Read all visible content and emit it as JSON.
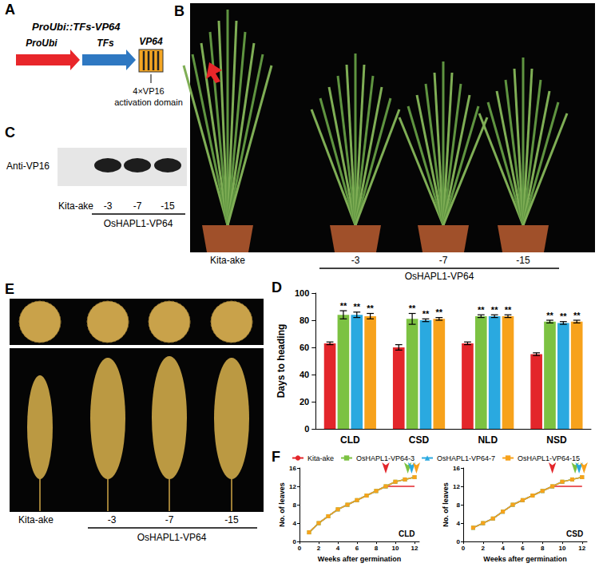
{
  "panels": {
    "A": {
      "label": "A",
      "title": "ProUbi::TFs-VP64",
      "parts": [
        "ProUbi",
        "TFs",
        "VP64"
      ],
      "note": [
        "4×VP16",
        "activation domain"
      ]
    },
    "B": {
      "label": "B",
      "lanes": [
        "Kita-ake",
        "-3",
        "-7",
        "-15"
      ],
      "group": "OsHAPL1-VP64"
    },
    "C": {
      "label": "C",
      "antibody": "Anti-VP16",
      "lanes": [
        "Kita-ake",
        "-3",
        "-7",
        "-15"
      ],
      "group": "OsHAPL1-VP64"
    },
    "E": {
      "label": "E",
      "lanes": [
        "Kita-ake",
        "-3",
        "-7",
        "-15"
      ],
      "group": "OsHAPL1-VP64"
    }
  },
  "chart_data": [
    {
      "panel_label": "D",
      "type": "bar",
      "ylabel": "Days to heading",
      "categories": [
        "CLD",
        "CSD",
        "NLD",
        "NSD"
      ],
      "series": [
        {
          "color": "#e3262b",
          "values": [
            63,
            60,
            63,
            55
          ],
          "errors": [
            1,
            2,
            1,
            1
          ]
        },
        {
          "color": "#7cc242",
          "values": [
            84,
            81,
            83,
            79
          ],
          "errors": [
            3,
            4,
            1,
            1
          ],
          "significance": [
            "**",
            "**",
            "**",
            "**"
          ]
        },
        {
          "color": "#2aa9e0",
          "values": [
            84,
            80,
            83,
            78
          ],
          "errors": [
            2,
            1,
            1,
            1
          ],
          "significance": [
            "**",
            "**",
            "**",
            "**"
          ]
        },
        {
          "color": "#f7a21c",
          "values": [
            83,
            81,
            83,
            79
          ],
          "errors": [
            2,
            1,
            1,
            1
          ],
          "significance": [
            "**",
            "**",
            "**",
            "**"
          ]
        }
      ],
      "ylim": [
        0,
        100
      ],
      "yticks": [
        0,
        20,
        40,
        60,
        80,
        100
      ],
      "grid": false
    },
    {
      "panel_label": "F",
      "type": "line",
      "annotation": "CLD",
      "xlabel": "Weeks after germination",
      "ylabel": "No. of leaves",
      "x": [
        1,
        2,
        3,
        4,
        5,
        6,
        7,
        8,
        9,
        10,
        11,
        12
      ],
      "series": [
        {
          "color": "#e3262b",
          "marker": "none",
          "values": [
            2,
            4,
            5.5,
            7,
            8,
            9,
            10,
            11,
            12,
            12,
            12,
            12
          ],
          "heading_week": 9
        },
        {
          "color": "#7cc242",
          "marker": "square",
          "values": [
            2,
            4,
            5.5,
            7,
            8,
            9,
            10,
            11,
            12,
            13,
            13.5,
            14
          ],
          "heading_week": 11.3
        },
        {
          "color": "#2aa9e0",
          "marker": "triangle",
          "values": [
            2,
            4,
            5.5,
            7,
            8,
            9,
            10,
            11,
            12,
            13,
            13.5,
            14
          ],
          "heading_week": 11.7
        },
        {
          "color": "#f7a21c",
          "marker": "square",
          "values": [
            2,
            4,
            5.5,
            7,
            8,
            9,
            10,
            11,
            12,
            13,
            13.5,
            14
          ],
          "heading_week": 12.2
        }
      ],
      "xlim": [
        0,
        12.5
      ],
      "xticks": [
        0,
        2,
        4,
        6,
        8,
        10,
        12
      ],
      "ylim": [
        0,
        16
      ],
      "yticks": [
        0,
        4,
        8,
        12,
        16
      ],
      "grid": false
    },
    {
      "type": "line",
      "annotation": "CSD",
      "legend": "top",
      "xlabel": "Weeks after germination",
      "ylabel": "No. of leaves",
      "x": [
        1,
        2,
        3,
        4,
        5,
        6,
        7,
        8,
        9,
        10,
        11,
        12
      ],
      "series": [
        {
          "name": "Kita-ake",
          "color": "#e3262b",
          "marker": "none",
          "values": [
            3,
            4,
            5,
            6.5,
            8,
            9,
            10,
            11,
            12,
            12,
            12,
            12
          ],
          "heading_week": 9
        },
        {
          "name": "OsHAPL1-VP64-3",
          "color": "#7cc242",
          "marker": "square",
          "values": [
            3,
            4,
            5,
            6.5,
            8,
            9,
            10,
            11,
            12,
            13,
            13.5,
            14
          ],
          "heading_week": 11.3
        },
        {
          "name": "OsHAPL1-VP64-7",
          "color": "#2aa9e0",
          "marker": "triangle",
          "values": [
            3,
            4,
            5,
            6.5,
            8,
            9,
            10,
            11,
            12,
            13,
            13.5,
            14
          ],
          "heading_week": 11.7
        },
        {
          "name": "OsHAPL1-VP64-15",
          "color": "#f7a21c",
          "marker": "square",
          "values": [
            3,
            4,
            5,
            6.5,
            8,
            9,
            10,
            11,
            12,
            13,
            13.5,
            14
          ],
          "heading_week": 12.2
        }
      ],
      "xlim": [
        0,
        12.5
      ],
      "xticks": [
        0,
        2,
        4,
        6,
        8,
        10,
        12
      ],
      "ylim": [
        0,
        16
      ],
      "yticks": [
        0,
        4,
        8,
        12,
        16
      ],
      "grid": false
    }
  ]
}
